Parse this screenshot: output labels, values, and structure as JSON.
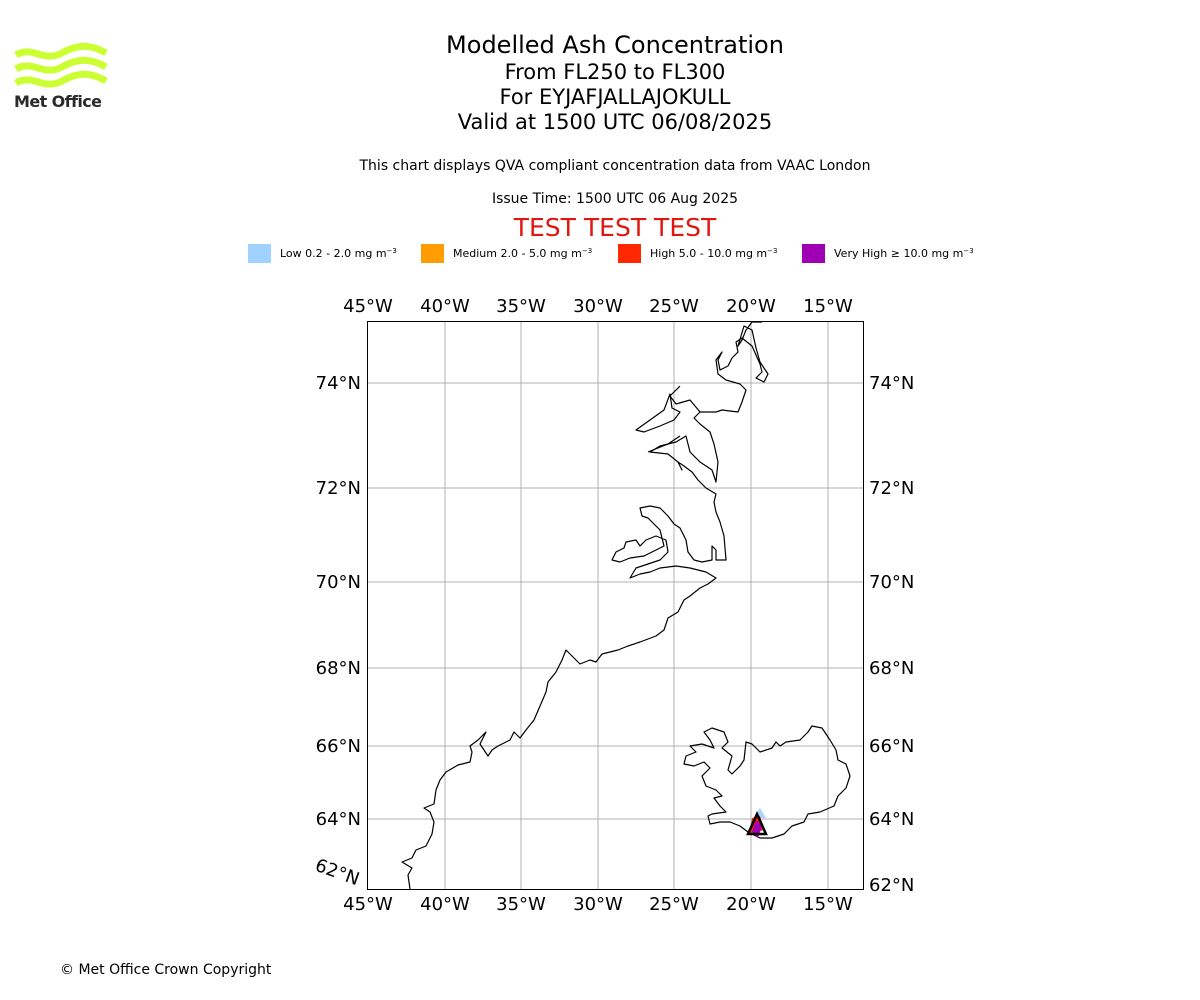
{
  "logo": {
    "text": "Met Office",
    "color": "#ccff33"
  },
  "header": {
    "title": "Modelled Ash Concentration",
    "levels": "From FL250 to FL300",
    "volcano": "For EYJAFJALLAJOKULL",
    "valid": "Valid at 1500 UTC 06/08/2025",
    "description": "This chart displays QVA compliant concentration data from VAAC London",
    "issue_time": "Issue Time: 1500 UTC 06 Aug 2025",
    "test_banner": "TEST TEST TEST"
  },
  "legend": {
    "items": [
      {
        "name": "Low",
        "range": "0.2 - 2.0 mg m",
        "exp": "−3",
        "color": "#a0d2ff"
      },
      {
        "name": "Medium",
        "range": "2.0 - 5.0 mg m",
        "exp": "−3",
        "color": "#ff9c00"
      },
      {
        "name": "High",
        "range": "5.0 - 10.0 mg m",
        "exp": "−3",
        "color": "#ff2800"
      },
      {
        "name": "Very High",
        "range": "≥  10.0 mg m",
        "exp": "−3",
        "color": "#a000b4"
      }
    ]
  },
  "map": {
    "top_lon_labels": [
      "45°W",
      "40°W",
      "35°W",
      "30°W",
      "25°W",
      "20°W",
      "15°W"
    ],
    "bottom_lon_labels": [
      "45°W",
      "40°W",
      "35°W",
      "30°W",
      "25°W",
      "20°W",
      "15°W"
    ],
    "left_lat_labels": [
      "74°N",
      "72°N",
      "70°N",
      "68°N",
      "66°N",
      "64°N"
    ],
    "left_corner_label": "62°N",
    "right_lat_labels": [
      "74°N",
      "72°N",
      "70°N",
      "68°N",
      "66°N",
      "64°N",
      "62°N"
    ],
    "volcano_marker": "black-triangle",
    "ash_colors": [
      "#a0d2ff",
      "#ff9c00",
      "#ff2800",
      "#a000b4"
    ]
  },
  "footer": {
    "copyright": "© Met Office Crown Copyright"
  }
}
